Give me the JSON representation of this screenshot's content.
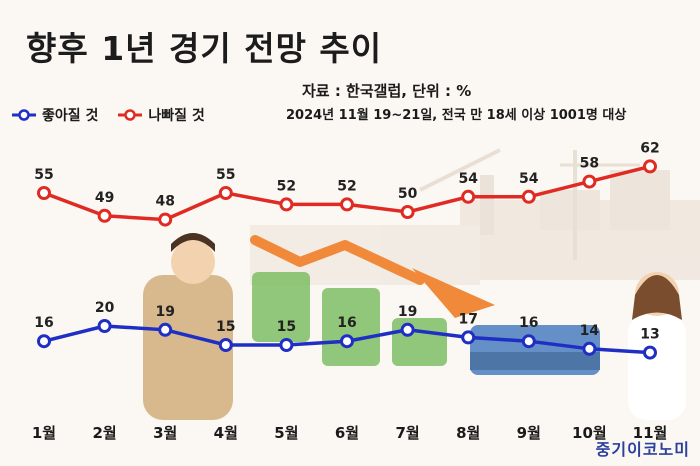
{
  "title": "향후 1년 경기 전망 추이",
  "source": "자료 : 한국갤럽, 단위 : %",
  "survey_note": "2024년 11월 19~21일, 전국 만 18세 이상 1001명 대상",
  "brand": "중기이코노미",
  "colors": {
    "good": "#1f2fc4",
    "bad": "#e02b24",
    "arrow": "#f08a3a",
    "background": "#fbf7f2"
  },
  "chart_data": {
    "type": "line",
    "categories": [
      "1월",
      "2월",
      "3월",
      "4월",
      "5월",
      "6월",
      "7월",
      "8월",
      "9월",
      "10월",
      "11월"
    ],
    "series": [
      {
        "name": "좋아질 것",
        "color": "#1f2fc4",
        "values": [
          16,
          20,
          19,
          15,
          15,
          16,
          19,
          17,
          16,
          14,
          13
        ]
      },
      {
        "name": "나빠질 것",
        "color": "#e02b24",
        "values": [
          55,
          49,
          48,
          55,
          52,
          52,
          50,
          54,
          54,
          58,
          62
        ]
      }
    ],
    "legend_position": "top-left",
    "grid": false,
    "data_labels": true
  }
}
